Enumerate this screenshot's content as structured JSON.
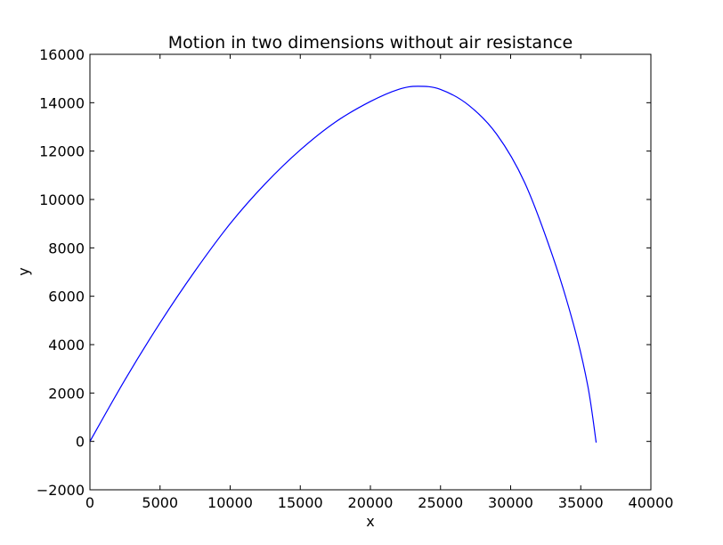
{
  "chart_data": {
    "type": "line",
    "title": "Motion in two dimensions without air resistance",
    "xlabel": "x",
    "ylabel": "y",
    "xlim": [
      0,
      40000
    ],
    "ylim": [
      -2000,
      16000
    ],
    "xticks": [
      0,
      5000,
      10000,
      15000,
      20000,
      25000,
      30000,
      35000,
      40000
    ],
    "yticks": [
      -2000,
      0,
      2000,
      4000,
      6000,
      8000,
      10000,
      12000,
      14000,
      16000
    ],
    "xtick_labels": [
      "0",
      "5000",
      "10000",
      "15000",
      "20000",
      "25000",
      "30000",
      "35000",
      "40000"
    ],
    "ytick_labels": [
      "−2000",
      "0",
      "2000",
      "4000",
      "6000",
      "8000",
      "10000",
      "12000",
      "14000",
      "16000"
    ],
    "grid": false,
    "series": [
      {
        "color": "#0000ff",
        "x": [
          0,
          2500,
          5000,
          7500,
          10000,
          12500,
          15000,
          17500,
          20000,
          22000,
          23400,
          25000,
          27000,
          29000,
          31000,
          33000,
          34500,
          35500,
          36100
        ],
        "y": [
          0,
          2550,
          4900,
          7050,
          9000,
          10650,
          12050,
          13200,
          14050,
          14550,
          14680,
          14550,
          13900,
          12700,
          10700,
          7650,
          4800,
          2300,
          -50
        ]
      }
    ]
  }
}
